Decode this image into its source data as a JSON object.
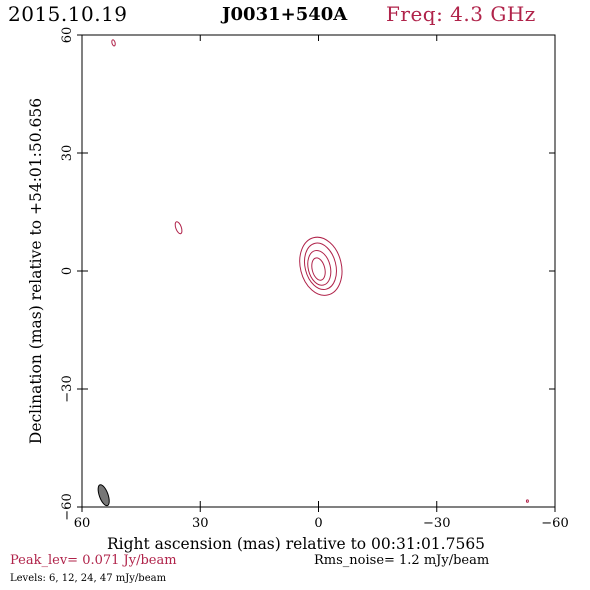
{
  "header": {
    "date": "2015.10.19",
    "source": "J0031+540A",
    "frequency": "Freq: 4.3 GHz"
  },
  "footer": {
    "peak": "Peak_lev=  0.071 Jy/beam",
    "rms": "Rms_noise=   1.2 mJy/beam",
    "levels": "Levels:   6,  12,  24,  47 mJy/beam"
  },
  "colors": {
    "accent": "#b0234a",
    "contour": "#b0234a",
    "beam_fill": "#777777",
    "axes": "#000000"
  },
  "chart_data": {
    "type": "contour",
    "title": "J0031+540A",
    "xlabel": "Right ascension (mas) relative to 00:31:01.7565",
    "ylabel": "Declination (mas) relative to +54:01:50.656",
    "xlim": [
      60,
      -60
    ],
    "ylim": [
      -60,
      60
    ],
    "xticks": [
      60,
      30,
      0,
      -30,
      -60
    ],
    "yticks": [
      -60,
      -30,
      0,
      30,
      60
    ],
    "xtick_labels": [
      "60",
      "30",
      "0",
      "−30",
      "−60"
    ],
    "ytick_labels": [
      "−60",
      "−30",
      "0",
      "30",
      "60"
    ],
    "levels_mJy": [
      6,
      12,
      24,
      47
    ],
    "peak_Jy_per_beam": 0.071,
    "rms_mJy_per_beam": 1.2,
    "contours": [
      {
        "name": "core-level-1",
        "center": [
          -0.6,
          1.2
        ],
        "rx": 5.2,
        "ry": 7.5,
        "angle": -14,
        "level": 6
      },
      {
        "name": "core-level-2",
        "center": [
          -0.5,
          1.2
        ],
        "rx": 3.9,
        "ry": 6.0,
        "angle": -14,
        "level": 12
      },
      {
        "name": "core-level-3",
        "center": [
          -0.2,
          0.8
        ],
        "rx": 2.8,
        "ry": 4.5,
        "angle": -14,
        "level": 24
      },
      {
        "name": "core-level-4",
        "center": [
          0.0,
          0.5
        ],
        "rx": 1.6,
        "ry": 2.9,
        "angle": -14,
        "level": 47
      },
      {
        "name": "blob-northwest",
        "center": [
          35.5,
          11.0
        ],
        "rx": 0.7,
        "ry": 1.6,
        "angle": -20,
        "level": 6
      },
      {
        "name": "blob-top-left",
        "center": [
          52.0,
          58.0
        ],
        "rx": 0.4,
        "ry": 0.8,
        "angle": -15,
        "level": 6
      },
      {
        "name": "blob-bottom-right",
        "center": [
          -53.0,
          -58.5
        ],
        "rx": 0.25,
        "ry": 0.3,
        "angle": 0,
        "level": 6
      }
    ],
    "beam": {
      "center": [
        54.5,
        -57.0
      ],
      "major": 2.8,
      "minor": 1.1,
      "angle": -20
    }
  }
}
